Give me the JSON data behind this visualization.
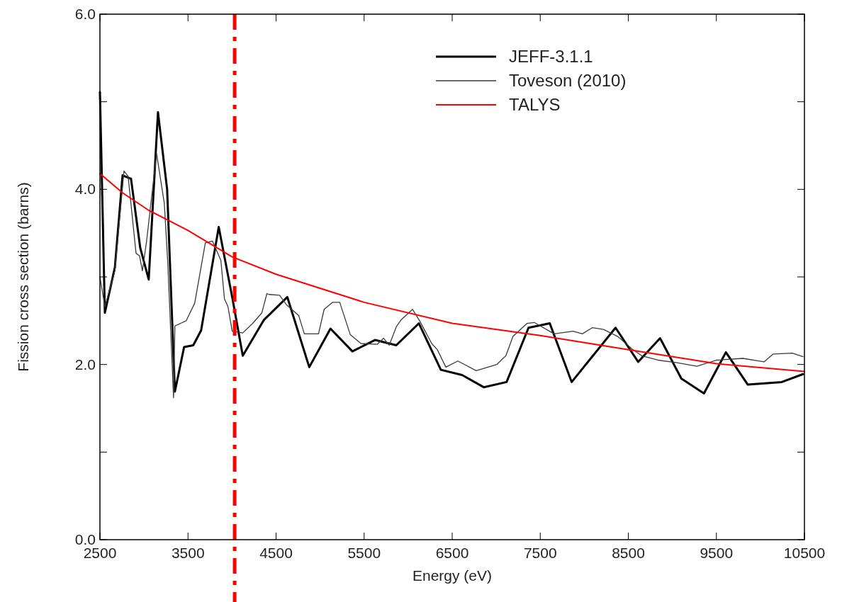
{
  "chart_data": {
    "type": "line",
    "xlabel": "Energy (eV)",
    "ylabel": "Fission cross section (barns)",
    "xlim": [
      2500,
      10500
    ],
    "ylim": [
      0,
      6
    ],
    "xticks": [
      2500,
      3500,
      4500,
      5500,
      6500,
      7500,
      8500,
      9500,
      10500
    ],
    "yticks": [
      {
        "value": 0,
        "label": "0.0"
      },
      {
        "value": 1,
        "label": null
      },
      {
        "value": 2,
        "label": "2.0"
      },
      {
        "value": 3,
        "label": null
      },
      {
        "value": 4,
        "label": "4.0"
      },
      {
        "value": 5,
        "label": null
      },
      {
        "value": 6,
        "label": "6.0"
      }
    ],
    "grid": false,
    "legend": "top right",
    "line_style": "solid",
    "marker": "none",
    "series": [
      {
        "name": "JEFF-3.1.1",
        "color": "#000000",
        "x": [
          2500,
          2556,
          2670,
          2757,
          2853,
          2958,
          3054,
          3159,
          3263,
          3351,
          3456,
          3560,
          3649,
          3849,
          4002,
          4122,
          4363,
          4628,
          4877,
          5118,
          5367,
          5624,
          5865,
          6122,
          6371,
          6612,
          6861,
          7118,
          7367,
          7608,
          7857,
          8355,
          8612,
          8861,
          9102,
          9359,
          9608,
          9857,
          10243,
          10484
        ],
        "values": [
          5.11,
          2.59,
          3.11,
          4.16,
          4.12,
          3.33,
          2.97,
          4.88,
          4.0,
          1.69,
          2.2,
          2.22,
          2.39,
          3.57,
          2.77,
          2.1,
          2.51,
          2.77,
          1.97,
          2.41,
          2.15,
          2.28,
          2.22,
          2.47,
          1.94,
          1.88,
          1.74,
          1.8,
          2.42,
          2.47,
          1.8,
          2.42,
          2.03,
          2.3,
          1.84,
          1.67,
          2.14,
          1.77,
          1.8,
          1.89
        ]
      },
      {
        "name": "Toveson (2010)",
        "color": "#3a3a3a",
        "x": [
          2500,
          2556,
          2670,
          2773,
          2820,
          2910,
          2950,
          2982,
          3030,
          3143,
          3231,
          3271,
          3336,
          3351,
          3480,
          3576,
          3697,
          3777,
          3873,
          3914,
          3954,
          4002,
          4122,
          4235,
          4339,
          4396,
          4420,
          4540,
          4620,
          4757,
          4821,
          4982,
          5046,
          5143,
          5223,
          5343,
          5464,
          5649,
          5721,
          5785,
          5865,
          5921,
          6050,
          6130,
          6267,
          6331,
          6428,
          6564,
          6773,
          7006,
          7110,
          7190,
          7351,
          7432,
          7657,
          7873,
          7978,
          8090,
          8219,
          8380,
          8540,
          8652,
          8837,
          9054,
          9279,
          9504,
          9801,
          10042,
          10146,
          10363,
          10484
        ],
        "values": [
          3.0,
          2.66,
          3.07,
          4.21,
          4.15,
          3.27,
          3.24,
          3.07,
          3.41,
          4.41,
          3.84,
          3.15,
          1.62,
          2.44,
          2.5,
          2.7,
          3.39,
          3.41,
          3.19,
          2.75,
          2.66,
          2.38,
          2.36,
          2.47,
          2.59,
          2.81,
          2.8,
          2.79,
          2.68,
          2.56,
          2.35,
          2.35,
          2.63,
          2.71,
          2.71,
          2.34,
          2.24,
          2.23,
          2.3,
          2.22,
          2.43,
          2.51,
          2.63,
          2.5,
          2.24,
          2.17,
          1.97,
          2.04,
          1.93,
          2.0,
          2.1,
          2.32,
          2.47,
          2.48,
          2.35,
          2.38,
          2.35,
          2.42,
          2.4,
          2.32,
          2.18,
          2.1,
          2.05,
          2.02,
          1.98,
          2.05,
          2.07,
          2.03,
          2.12,
          2.13,
          2.09
        ]
      },
      {
        "name": "TALYS",
        "color": "#ff0000",
        "x": [
          2500,
          2757,
          3054,
          3250,
          3500,
          4000,
          4500,
          5500,
          6500,
          7500,
          8500,
          9500,
          10500
        ],
        "values": [
          4.18,
          3.96,
          3.76,
          3.66,
          3.53,
          3.23,
          3.03,
          2.71,
          2.47,
          2.33,
          2.17,
          2.01,
          1.92
        ]
      }
    ],
    "ref_lines": [
      {
        "axis": "x",
        "value": 4030,
        "color": "#ff0000",
        "line_style": "dashed"
      }
    ]
  }
}
